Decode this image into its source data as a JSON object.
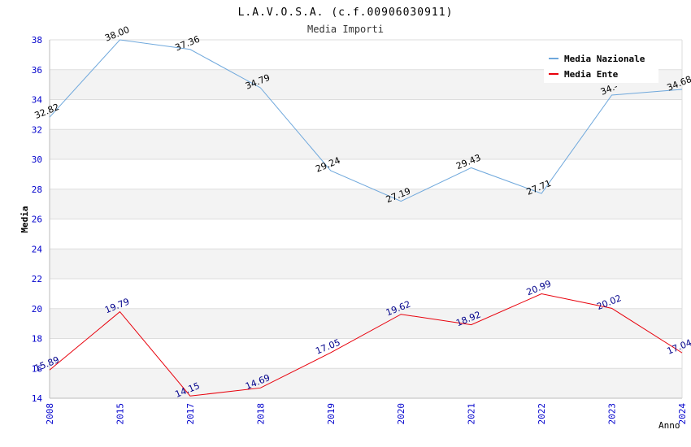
{
  "chart_data": {
    "type": "line",
    "title": "L.A.V.O.S.A. (c.f.00906030911)",
    "subtitle": "Media Importi",
    "xlabel": "Anno",
    "ylabel": "Media",
    "categories": [
      "2008",
      "2015",
      "2017",
      "2018",
      "2019",
      "2020",
      "2021",
      "2022",
      "2023",
      "2024"
    ],
    "ylim": [
      14,
      38
    ],
    "yticks": [
      14,
      16,
      18,
      20,
      22,
      24,
      26,
      28,
      30,
      32,
      34,
      36,
      38
    ],
    "grid": true,
    "legend_position": "top-right",
    "series": [
      {
        "name": "Media Nazionale",
        "color": "#6fa8dc",
        "label_color": "#000000",
        "values": [
          32.82,
          38.0,
          37.36,
          34.79,
          29.24,
          27.19,
          29.43,
          27.71,
          34.3,
          34.68
        ],
        "labels": [
          "32.82",
          "38.00",
          "37.36",
          "34.79",
          "29.24",
          "27.19",
          "29.43",
          "27.71",
          "34.-",
          "34.68"
        ]
      },
      {
        "name": "Media Ente",
        "color": "#e8000b",
        "label_color": "#00008b",
        "values": [
          15.89,
          19.79,
          14.15,
          14.69,
          17.05,
          19.62,
          18.92,
          20.99,
          20.02,
          17.04
        ],
        "labels": [
          "15.89",
          "19.79",
          "14.15",
          "14.69",
          "17.05",
          "19.62",
          "18.92",
          "20.99",
          "20.02",
          "17.04"
        ]
      }
    ]
  }
}
